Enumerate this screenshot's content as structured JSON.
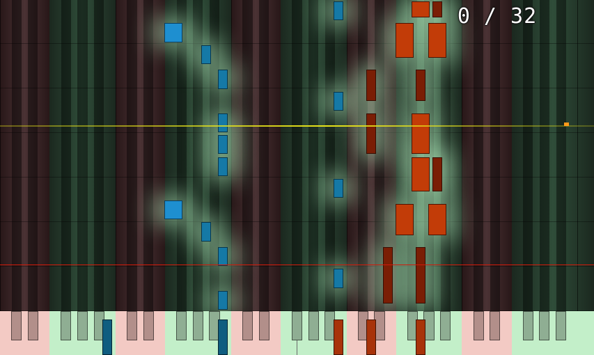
{
  "counter": {
    "current": 0,
    "total": 32,
    "text": "0 / 32"
  },
  "progress": {
    "current": 0,
    "total": 32
  },
  "colors": {
    "left_hand": "#1e8fd0",
    "right_hand": "#c23c08",
    "lane_light_green": "#2f4d39",
    "lane_dark_green": "#1b281f",
    "lane_light_red": "#4a3234",
    "lane_dark_red": "#281718",
    "key_green": "#c3efc9",
    "key_pink": "#f3cac4",
    "glow": "#b8f2c2",
    "guide_yellow": "#e8e41a",
    "guide_red": "#d11a0a",
    "progress_marker": "#ff9a1a"
  },
  "keyboard": {
    "white_key_count": 36,
    "key_color_pattern": [
      "pink",
      "pink",
      "pink",
      "green",
      "green",
      "green",
      "green",
      "pink",
      "pink",
      "pink",
      "green",
      "green",
      "green",
      "green",
      "pink",
      "pink",
      "pink",
      "green",
      "green",
      "green",
      "green",
      "pink",
      "pink",
      "pink",
      "green",
      "green",
      "green",
      "green",
      "pink",
      "pink",
      "pink",
      "green",
      "green",
      "green",
      "green",
      "green"
    ]
  },
  "pressed_keys": [
    {
      "hand": "left",
      "key": 6
    },
    {
      "hand": "left",
      "key": 13
    },
    {
      "hand": "right",
      "key": 20
    },
    {
      "hand": "right",
      "key": 22
    },
    {
      "hand": "right",
      "key": 25
    }
  ],
  "falling_notes": [
    {
      "hand": "left",
      "key": 13,
      "big": false,
      "time": [
        0.0,
        0.07
      ]
    },
    {
      "hand": "left",
      "key": 13,
      "big": false,
      "time": [
        0.14,
        0.21
      ]
    },
    {
      "hand": "left",
      "key": 12,
      "big": false,
      "time": [
        0.22,
        0.29
      ]
    },
    {
      "hand": "left",
      "key": 10,
      "big": true,
      "time": [
        0.29,
        0.36
      ]
    },
    {
      "hand": "left",
      "key": 20,
      "big": false,
      "time": [
        0.07,
        0.14
      ]
    },
    {
      "hand": "left",
      "key": 20,
      "big": false,
      "time": [
        0.36,
        0.43
      ]
    },
    {
      "hand": "left",
      "key": 13,
      "big": false,
      "time": [
        0.43,
        0.5
      ]
    },
    {
      "hand": "left",
      "key": 13,
      "big": false,
      "time": [
        0.5,
        0.57
      ]
    },
    {
      "hand": "left",
      "key": 13,
      "big": false,
      "time": [
        0.57,
        0.64
      ]
    },
    {
      "hand": "left",
      "key": 20,
      "big": false,
      "time": [
        0.64,
        0.71
      ]
    },
    {
      "hand": "left",
      "key": 13,
      "big": false,
      "time": [
        0.71,
        0.78
      ]
    },
    {
      "hand": "left",
      "key": 12,
      "big": false,
      "time": [
        0.79,
        0.86
      ]
    },
    {
      "hand": "left",
      "key": 10,
      "big": true,
      "time": [
        0.86,
        0.93
      ]
    },
    {
      "hand": "left",
      "key": 20,
      "big": false,
      "time": [
        0.93,
        1.0
      ]
    },
    {
      "hand": "right",
      "key": 23,
      "big": false,
      "time": [
        0.02,
        0.21
      ]
    },
    {
      "hand": "right",
      "key": 25,
      "big": false,
      "time": [
        0.02,
        0.21
      ]
    },
    {
      "hand": "right",
      "key": 24,
      "big": true,
      "time": [
        0.24,
        0.35
      ]
    },
    {
      "hand": "right",
      "key": 26,
      "big": true,
      "time": [
        0.24,
        0.35
      ]
    },
    {
      "hand": "right",
      "key": 25,
      "big": true,
      "time": [
        0.38,
        0.5
      ]
    },
    {
      "hand": "right",
      "key": 26,
      "big": false,
      "time": [
        0.38,
        0.5
      ]
    },
    {
      "hand": "right",
      "key": 22,
      "big": false,
      "time": [
        0.5,
        0.64
      ]
    },
    {
      "hand": "right",
      "key": 25,
      "big": true,
      "time": [
        0.5,
        0.64
      ]
    },
    {
      "hand": "right",
      "key": 22,
      "big": false,
      "time": [
        0.67,
        0.78
      ]
    },
    {
      "hand": "right",
      "key": 25,
      "big": false,
      "time": [
        0.67,
        0.78
      ]
    },
    {
      "hand": "right",
      "key": 24,
      "big": true,
      "time": [
        0.81,
        0.93
      ]
    },
    {
      "hand": "right",
      "key": 26,
      "big": true,
      "time": [
        0.81,
        0.93
      ]
    },
    {
      "hand": "right",
      "key": 25,
      "big": true,
      "time": [
        0.94,
        1.0
      ]
    },
    {
      "hand": "right",
      "key": 26,
      "big": false,
      "time": [
        0.94,
        1.0
      ]
    }
  ]
}
